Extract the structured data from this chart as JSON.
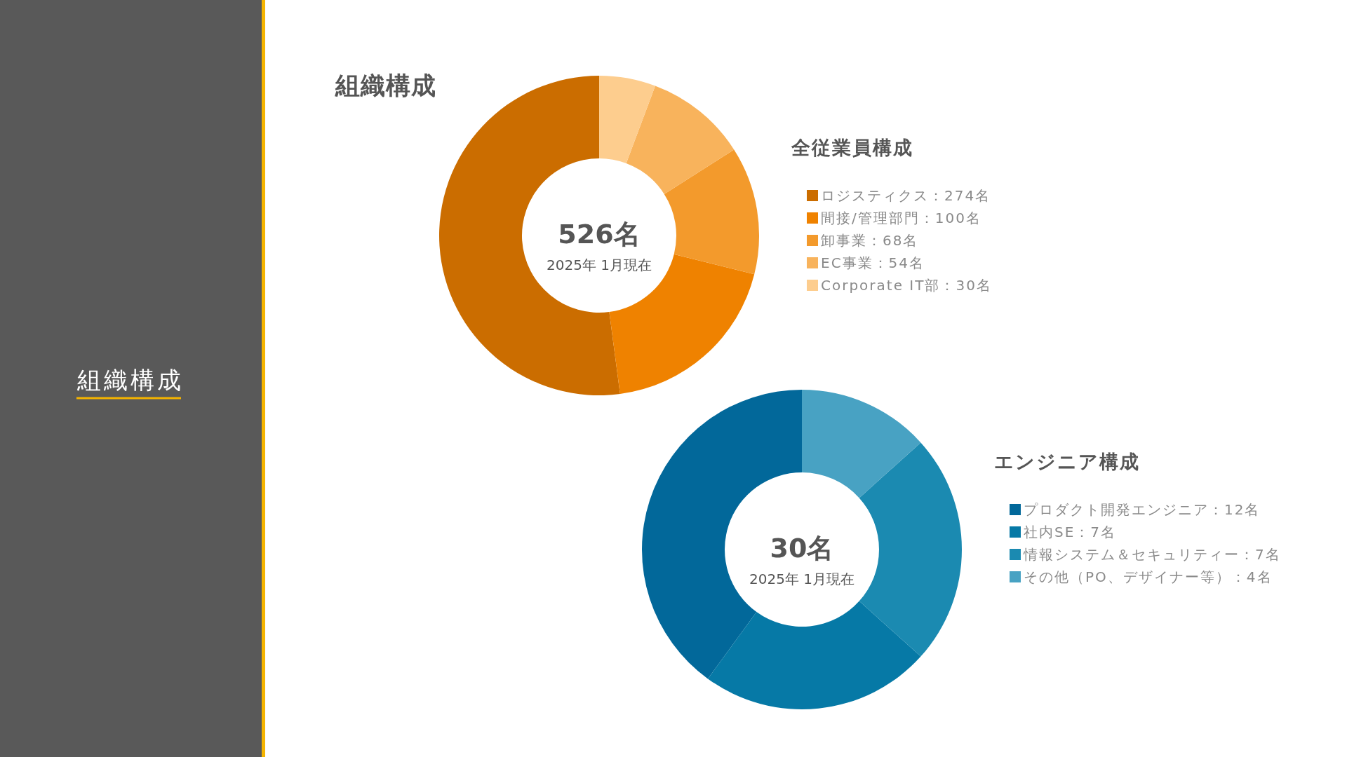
{
  "chart_data": [
    {
      "type": "other",
      "title": "組織構成"
    },
    {
      "type": "other",
      "title": "組織構成"
    },
    {
      "type": "donut",
      "title": "全従業員構成",
      "categories": [
        "ロジスティクス：274名",
        "間接/管理部門：100名",
        "卸事業：68名",
        "EC事業：54名",
        "Corporate IT部：30名"
      ],
      "values": [
        274,
        100,
        68,
        54,
        30
      ],
      "colors": [
        "#cb6d00",
        "#ef8200",
        "#f39a2c",
        "#f8b35c",
        "#fdcd8e"
      ],
      "annotations": [
        "526名",
        "2025年 1月現在"
      ],
      "legend": "right"
    },
    {
      "type": "donut",
      "title": "エンジニア構成",
      "categories": [
        "プロダクト開発エンジニア：12名",
        "社内SE：7名",
        "情報システム＆セキュリティー：7名",
        "その他（PO、デザイナー等）：4名"
      ],
      "values": [
        12,
        7,
        7,
        4
      ],
      "colors": [
        "#02689a",
        "#0679a6",
        "#1b8ab1",
        "#48a2c3"
      ],
      "annotations": [
        "30名",
        "2025年 1月現在"
      ],
      "legend": "right"
    }
  ]
}
